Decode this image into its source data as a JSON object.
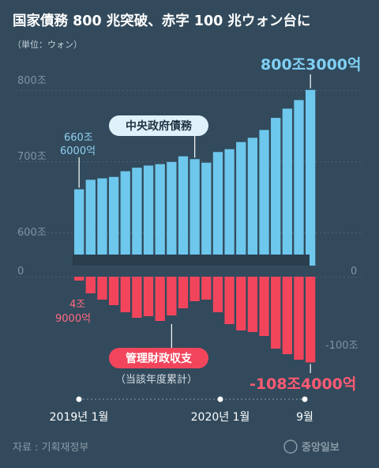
{
  "header": {
    "title": "国家債務 800 兆突破、赤字 100 兆ウォン台に",
    "unit": "（単位：ウォン）"
  },
  "chart_data": {
    "type": "bar",
    "x": [
      "2019-01",
      "2019-02",
      "2019-03",
      "2019-04",
      "2019-05",
      "2019-06",
      "2019-07",
      "2019-08",
      "2019-09",
      "2019-10",
      "2019-11",
      "2019-12",
      "2020-01",
      "2020-02",
      "2020-03",
      "2020-04",
      "2020-05",
      "2020-06",
      "2020-07",
      "2020-08",
      "2020-09"
    ],
    "series": [
      {
        "name": "中央政府債務",
        "values": [
          660.6,
          674,
          676,
          678,
          686,
          691,
          694,
          696,
          699,
          707,
          703,
          698,
          713,
          717,
          727,
          733,
          744,
          761,
          774,
          786,
          800.3
        ]
      },
      {
        "name": "管理財政収支",
        "values": [
          -4.9,
          -21,
          -29,
          -36,
          -45,
          -52,
          -50,
          -56,
          -49,
          -40,
          -31,
          -29,
          -45,
          -60,
          -68,
          -70,
          -75,
          -91,
          -98,
          -105,
          -108.4
        ]
      }
    ],
    "yticks_upper": [
      "600조",
      "700조",
      "800조"
    ],
    "yticks_lower": [
      "0",
      "-100조"
    ],
    "yticks_right": [
      "0",
      "-100조"
    ],
    "x_tick_labels": [
      "2019년 1월",
      "2020년 1월",
      "9월"
    ],
    "annotations": {
      "debt_first": [
        "660조",
        "6000억"
      ],
      "debt_last": "800조3000억",
      "balance_first": [
        "4조",
        "9000억"
      ],
      "balance_last": "-108조4000억"
    },
    "legend": {
      "debt": "中央政府債務",
      "balance": "管理財政収支",
      "balance_note": "（当該年度累計）"
    },
    "colors": {
      "debt": "#6ec7ec",
      "balance": "#f2455c",
      "background": "#324a5c"
    }
  },
  "footer": {
    "source": "자료 : 기획재정부",
    "logo": "중앙일보"
  }
}
